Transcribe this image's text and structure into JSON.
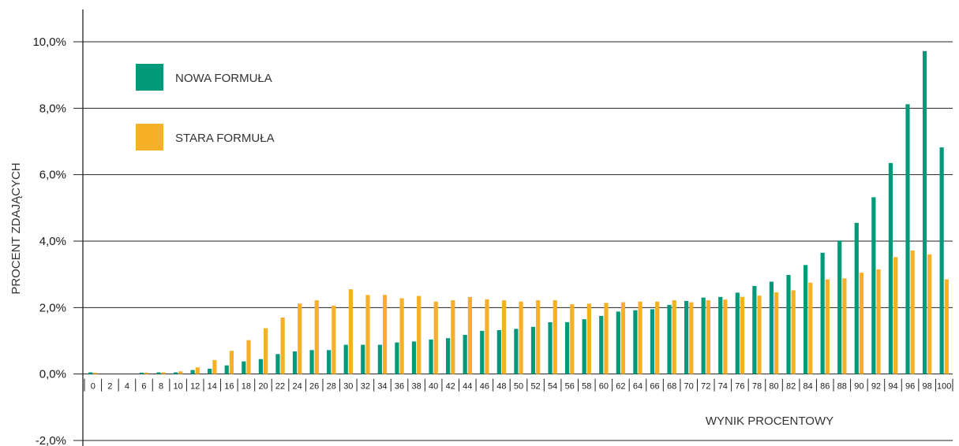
{
  "chart_data": {
    "type": "bar",
    "xlabel": "WYNIK PROCENTOWY",
    "ylabel": "PROCENT ZDAJĄCYCH",
    "ylim": [
      -2.0,
      10.0
    ],
    "yticks": [
      "10,0%",
      "8,0%",
      "6,0%",
      "4,0%",
      "2,0%",
      "0,0%",
      "-2,0%"
    ],
    "ytick_values": [
      10,
      8,
      6,
      4,
      2,
      0,
      -2
    ],
    "grid": true,
    "legend_position": "top-left",
    "categories": [
      "0",
      "2",
      "4",
      "6",
      "8",
      "10",
      "12",
      "14",
      "16",
      "18",
      "20",
      "22",
      "24",
      "26",
      "28",
      "30",
      "32",
      "34",
      "36",
      "38",
      "40",
      "42",
      "44",
      "46",
      "48",
      "50",
      "52",
      "54",
      "56",
      "58",
      "60",
      "62",
      "64",
      "66",
      "68",
      "70",
      "72",
      "74",
      "76",
      "78",
      "80",
      "82",
      "84",
      "86",
      "88",
      "90",
      "92",
      "94",
      "96",
      "98",
      "100"
    ],
    "series": [
      {
        "name": "NOWA FORMUŁA",
        "color": "#00997A",
        "values": [
          0.05,
          0.0,
          0.0,
          0.04,
          0.05,
          0.05,
          0.12,
          0.16,
          0.26,
          0.38,
          0.45,
          0.6,
          0.68,
          0.72,
          0.72,
          0.88,
          0.88,
          0.88,
          0.95,
          0.98,
          1.04,
          1.08,
          1.18,
          1.3,
          1.32,
          1.36,
          1.42,
          1.56,
          1.56,
          1.65,
          1.75,
          1.88,
          1.92,
          1.95,
          2.08,
          2.2,
          2.3,
          2.32,
          2.45,
          2.65,
          2.78,
          2.98,
          3.28,
          3.65,
          4.02,
          4.55,
          5.32,
          6.35,
          8.12,
          9.72,
          6.82
        ]
      },
      {
        "name": "STARA FORMUŁA",
        "color": "#F5B027",
        "values": [
          0.04,
          0.0,
          0.0,
          0.04,
          0.05,
          0.08,
          0.2,
          0.42,
          0.7,
          1.02,
          1.38,
          1.7,
          2.12,
          2.22,
          2.06,
          2.55,
          2.38,
          2.38,
          2.28,
          2.35,
          2.18,
          2.22,
          2.32,
          2.25,
          2.22,
          2.18,
          2.22,
          2.22,
          2.1,
          2.12,
          2.14,
          2.16,
          2.18,
          2.18,
          2.22,
          2.16,
          2.22,
          2.24,
          2.32,
          2.36,
          2.46,
          2.52,
          2.75,
          2.85,
          2.88,
          3.05,
          3.15,
          3.52,
          3.72,
          3.6,
          2.85
        ]
      }
    ]
  }
}
